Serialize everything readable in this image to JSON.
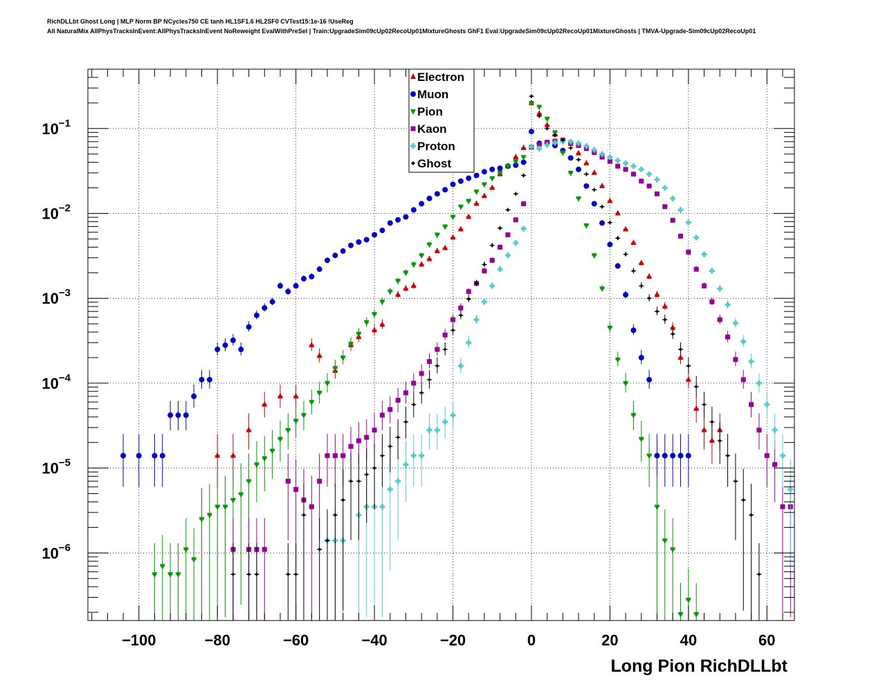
{
  "header": {
    "line1": "RichDLLbt Ghost Long | MLP Norm BP NCycles750 CE tanh HL1SF1.6 HL2SF0 CVTest15:1e-16 !UseReg",
    "line2": "All NaturalMix AllPhysTracksInEvent:AllPhysTracksInEvent NoReweight EvalWithPreSel | Train:UpgradeSim09cUp02RecoUp01MixtureGhosts GhF1 Eval:UpgradeSim09cUp02RecoUp01MixtureGhosts | TMVA-Upgrade-Sim09cUp02RecoUp01"
  },
  "chart_data": {
    "type": "scatter",
    "title": "",
    "xlabel": "Long Pion RichDLLbt",
    "ylabel": "",
    "xlim": [
      -113,
      67
    ],
    "ylim": [
      1.6e-07,
      0.5
    ],
    "yscale": "log",
    "grid": true,
    "x_ticks": [
      -100,
      -80,
      -60,
      -40,
      -20,
      0,
      20,
      40,
      60
    ],
    "x_tick_labels": [
      "−100",
      "−80",
      "−60",
      "−40",
      "−20",
      "0",
      "20",
      "40",
      "60"
    ],
    "y_ticks": [
      1e-06,
      1e-05,
      0.0001,
      0.001,
      0.01,
      0.1
    ],
    "y_tick_labels": [
      [
        "10",
        "−6"
      ],
      [
        "10",
        "−5"
      ],
      [
        "10",
        "−4"
      ],
      [
        "10",
        "−3"
      ],
      [
        "10",
        "−2"
      ],
      [
        "10",
        "−1"
      ]
    ],
    "legend_position": "top-center",
    "series": [
      {
        "name": "Electron",
        "color": "#cc0000",
        "marker": "triangle-up",
        "x": [
          -80,
          -76,
          -72,
          -68,
          -64,
          -60,
          -56,
          -54,
          -50,
          -46,
          -44,
          -40,
          -38,
          -34,
          -32,
          -30,
          -28,
          -26,
          -24,
          -22,
          -20,
          -18,
          -16,
          -14,
          -12,
          -10,
          -8,
          -6,
          -4,
          -2,
          0,
          2,
          4,
          6,
          8,
          10,
          12,
          14,
          16,
          18,
          20,
          22,
          24,
          26,
          28,
          30,
          32,
          34,
          36,
          38,
          40,
          42,
          44,
          46,
          48
        ],
        "y": [
          1.4e-05,
          1.4e-05,
          2.8e-05,
          5.6e-05,
          7e-05,
          7e-05,
          0.00028,
          0.00021,
          0.00014,
          0.00028,
          0.00035,
          0.00042,
          0.00049,
          0.0011,
          0.0013,
          0.0014,
          0.0025,
          0.0029,
          0.0036,
          0.0039,
          0.0052,
          0.0065,
          0.0091,
          0.013,
          0.016,
          0.02,
          0.029,
          0.036,
          0.046,
          0.059,
          0.2,
          0.15,
          0.11,
          0.085,
          0.072,
          0.066,
          0.051,
          0.039,
          0.03,
          0.021,
          0.014,
          0.01,
          0.0065,
          0.0045,
          0.0026,
          0.0018,
          0.0011,
          0.0008,
          0.00045,
          0.0002,
          0.00011,
          5e-05,
          2.8e-05,
          2.1e-05,
          2.8e-05
        ]
      },
      {
        "name": "Muon",
        "color": "#0000cc",
        "marker": "circle",
        "x": [
          -104,
          -100,
          -96,
          -94,
          -92,
          -90,
          -88,
          -86,
          -84,
          -82,
          -80,
          -78,
          -76,
          -74,
          -72,
          -70,
          -68,
          -66,
          -64,
          -62,
          -60,
          -58,
          -56,
          -54,
          -52,
          -50,
          -48,
          -46,
          -44,
          -42,
          -40,
          -38,
          -36,
          -34,
          -32,
          -30,
          -28,
          -26,
          -24,
          -22,
          -20,
          -18,
          -16,
          -14,
          -12,
          -10,
          -8,
          -6,
          -4,
          -2,
          0,
          2,
          4,
          6,
          8,
          10,
          12,
          14,
          16,
          18,
          20,
          22,
          24,
          26,
          28,
          30,
          32,
          34,
          36,
          38,
          40
        ],
        "y": [
          1.4e-05,
          1.4e-05,
          1.4e-05,
          1.4e-05,
          4.2e-05,
          4.2e-05,
          4.2e-05,
          7e-05,
          0.00011,
          0.00011,
          0.00025,
          0.00028,
          0.00032,
          0.00025,
          0.00046,
          0.00063,
          0.00077,
          0.00091,
          0.0014,
          0.0012,
          0.0014,
          0.0017,
          0.0018,
          0.0022,
          0.0028,
          0.0032,
          0.0036,
          0.0042,
          0.0046,
          0.0049,
          0.0056,
          0.0063,
          0.0077,
          0.0084,
          0.0091,
          0.011,
          0.013,
          0.015,
          0.017,
          0.019,
          0.022,
          0.024,
          0.026,
          0.028,
          0.031,
          0.033,
          0.034,
          0.036,
          0.037,
          0.04,
          0.092,
          0.067,
          0.068,
          0.063,
          0.055,
          0.045,
          0.033,
          0.021,
          0.013,
          0.0077,
          0.0043,
          0.0024,
          0.0011,
          0.00042,
          0.0002,
          0.00011,
          1.4e-05,
          1.4e-05,
          1.4e-05,
          1.4e-05,
          1.4e-05
        ]
      },
      {
        "name": "Pion",
        "color": "#009900",
        "marker": "triangle-down",
        "x": [
          -96,
          -94,
          -92,
          -90,
          -88,
          -86,
          -84,
          -82,
          -80,
          -78,
          -76,
          -74,
          -72,
          -70,
          -68,
          -66,
          -64,
          -62,
          -60,
          -58,
          -56,
          -54,
          -52,
          -50,
          -48,
          -46,
          -44,
          -42,
          -40,
          -38,
          -36,
          -34,
          -32,
          -30,
          -28,
          -26,
          -24,
          -22,
          -20,
          -18,
          -16,
          -14,
          -12,
          -10,
          -8,
          -6,
          -4,
          -2,
          0,
          2,
          4,
          6,
          8,
          10,
          12,
          14,
          16,
          18,
          20,
          22,
          24,
          26,
          28,
          30,
          32,
          34,
          36,
          38,
          40,
          42
        ],
        "y": [
          5.6e-07,
          7e-07,
          5.6e-07,
          5.6e-07,
          1.1e-06,
          8.4e-07,
          2.5e-06,
          2.8e-06,
          3.5e-06,
          3.5e-06,
          4.2e-06,
          4.9e-06,
          7e-06,
          1.1e-05,
          1.3e-05,
          1.6e-05,
          2.2e-05,
          2.8e-05,
          3.6e-05,
          4.2e-05,
          6e-05,
          7.7e-05,
          0.0001,
          0.00015,
          0.0002,
          0.00029,
          0.00038,
          0.00052,
          0.00065,
          0.00091,
          0.0012,
          0.0016,
          0.002,
          0.0025,
          0.0032,
          0.0043,
          0.0056,
          0.007,
          0.0091,
          0.012,
          0.014,
          0.018,
          0.022,
          0.026,
          0.03,
          0.036,
          0.041,
          0.046,
          0.2,
          0.18,
          0.13,
          0.09,
          0.052,
          0.03,
          0.015,
          0.0072,
          0.0032,
          0.0013,
          0.00045,
          0.00019,
          0.0001,
          4.2e-05,
          2.2e-05,
          1.4e-05,
          3.5e-06,
          1.4e-06,
          1.1e-06,
          1.9e-07,
          2.8e-07,
          1.9e-07
        ]
      },
      {
        "name": "Kaon",
        "color": "#990099",
        "marker": "square",
        "x": [
          -76,
          -72,
          -70,
          -68,
          -62,
          -60,
          -58,
          -56,
          -54,
          -52,
          -50,
          -48,
          -46,
          -44,
          -42,
          -40,
          -38,
          -36,
          -34,
          -32,
          -30,
          -28,
          -26,
          -24,
          -22,
          -20,
          -18,
          -16,
          -14,
          -12,
          -10,
          -8,
          -6,
          -4,
          -2,
          0,
          2,
          4,
          6,
          8,
          10,
          12,
          14,
          16,
          18,
          20,
          22,
          24,
          26,
          28,
          30,
          32,
          34,
          36,
          38,
          40,
          42,
          44,
          46,
          48,
          50,
          52,
          54,
          56,
          58,
          60,
          62,
          64,
          66
        ],
        "y": [
          1.1e-06,
          1.1e-06,
          1.1e-06,
          1.1e-06,
          7e-06,
          5.6e-06,
          4.2e-06,
          3.5e-06,
          7e-06,
          1.4e-05,
          1.4e-05,
          1.4e-05,
          1.8e-05,
          2.1e-05,
          2.3e-05,
          2.8e-05,
          4.2e-05,
          4.9e-05,
          6.3e-05,
          7.7e-05,
          0.0001,
          0.00013,
          0.00018,
          0.00025,
          0.00037,
          0.00056,
          0.00077,
          0.0012,
          0.0015,
          0.0021,
          0.0028,
          0.004,
          0.0056,
          0.0084,
          0.013,
          0.06,
          0.065,
          0.069,
          0.071,
          0.073,
          0.068,
          0.063,
          0.058,
          0.052,
          0.046,
          0.041,
          0.036,
          0.033,
          0.029,
          0.024,
          0.021,
          0.017,
          0.012,
          0.0083,
          0.0054,
          0.0035,
          0.0022,
          0.0014,
          0.00091,
          0.00056,
          0.00035,
          0.00019,
          0.00011,
          5.6e-05,
          2.8e-05,
          1.4e-05,
          1.1e-05,
          3.5e-06,
          3.5e-06
        ]
      },
      {
        "name": "Proton",
        "color": "#55cccc",
        "marker": "cross",
        "x": [
          -52,
          -50,
          -48,
          -44,
          -42,
          -40,
          -38,
          -36,
          -34,
          -32,
          -30,
          -28,
          -26,
          -24,
          -22,
          -20,
          -18,
          -16,
          -14,
          -12,
          -10,
          -8,
          -6,
          -4,
          -2,
          0,
          2,
          4,
          6,
          8,
          10,
          12,
          14,
          16,
          18,
          20,
          22,
          24,
          26,
          28,
          30,
          32,
          34,
          36,
          38,
          40,
          42,
          44,
          46,
          48,
          50,
          52,
          54,
          56,
          58,
          60,
          62,
          64,
          66
        ],
        "y": [
          1.4e-06,
          1.4e-06,
          1.4e-06,
          2.8e-06,
          3.5e-06,
          3.5e-06,
          3.5e-06,
          5.6e-06,
          7e-06,
          1.1e-05,
          1.4e-05,
          1.4e-05,
          2.8e-05,
          2.8e-05,
          3.5e-05,
          4.2e-05,
          0.00016,
          0.0003,
          0.00056,
          0.00091,
          0.0014,
          0.0022,
          0.0032,
          0.0045,
          0.0066,
          0.061,
          0.058,
          0.064,
          0.068,
          0.07,
          0.07,
          0.067,
          0.062,
          0.056,
          0.05,
          0.046,
          0.042,
          0.039,
          0.036,
          0.033,
          0.029,
          0.025,
          0.02,
          0.015,
          0.011,
          0.0078,
          0.0052,
          0.0033,
          0.0021,
          0.0013,
          0.00084,
          0.00051,
          0.00031,
          0.00018,
          0.0001,
          5.6e-05,
          2.8e-05,
          1.4e-05,
          5.6e-06
        ]
      },
      {
        "name": "Ghost",
        "color": "#000000",
        "marker": "star",
        "x": [
          -76,
          -72,
          -70,
          -62,
          -60,
          -58,
          -54,
          -52,
          -50,
          -48,
          -46,
          -44,
          -42,
          -40,
          -38,
          -36,
          -34,
          -32,
          -30,
          -28,
          -26,
          -24,
          -22,
          -20,
          -18,
          -16,
          -14,
          -12,
          -10,
          -8,
          -6,
          -4,
          -2,
          0,
          2,
          4,
          6,
          8,
          10,
          12,
          14,
          16,
          18,
          20,
          22,
          24,
          26,
          28,
          30,
          32,
          34,
          36,
          38,
          40,
          42,
          44,
          46,
          48,
          50,
          52,
          54,
          56,
          58
        ],
        "y": [
          5.6e-07,
          5.6e-07,
          5.6e-07,
          5.6e-07,
          5.6e-07,
          2.8e-06,
          1.1e-06,
          1.4e-06,
          2.8e-06,
          4.2e-06,
          7e-06,
          7e-06,
          8.4e-06,
          1e-05,
          1.4e-05,
          1.8e-05,
          2.3e-05,
          3.5e-05,
          5.6e-05,
          7.7e-05,
          0.00011,
          0.00016,
          0.00025,
          0.00042,
          0.00063,
          0.00098,
          0.0015,
          0.0025,
          0.0042,
          0.0067,
          0.011,
          0.017,
          0.028,
          0.24,
          0.14,
          0.1,
          0.083,
          0.073,
          0.059,
          0.043,
          0.029,
          0.019,
          0.012,
          0.0078,
          0.0051,
          0.0033,
          0.0021,
          0.0014,
          0.001,
          0.0007,
          0.00056,
          0.00038,
          0.00025,
          0.00016,
          9.1e-05,
          5.6e-05,
          3.5e-05,
          2.1e-05,
          1.4e-05,
          7e-06,
          4.2e-06,
          2.8e-06,
          5.6e-07
        ]
      }
    ]
  }
}
